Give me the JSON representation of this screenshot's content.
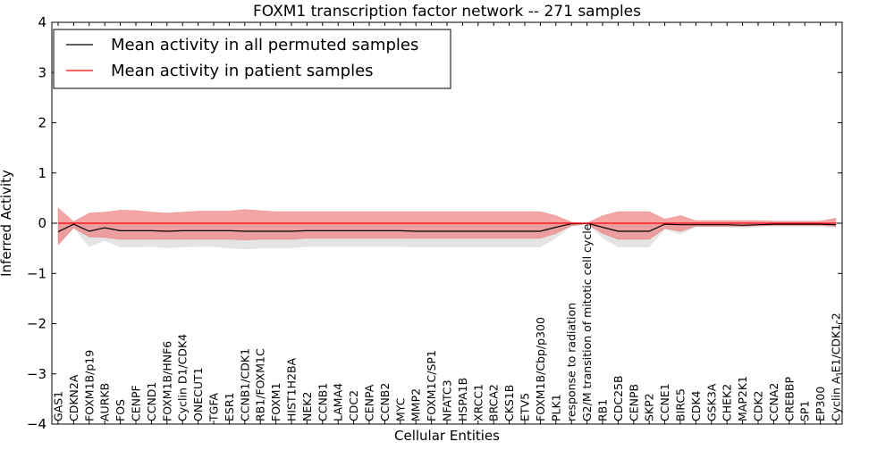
{
  "chart_data": {
    "type": "line",
    "title": "FOXM1 transcription factor network -- 271 samples",
    "xlabel": "Cellular Entities",
    "ylabel": "Inferred Activity",
    "ylim": [
      -4,
      4
    ],
    "yticks": [
      -4,
      -3,
      -2,
      -1,
      0,
      1,
      2,
      3,
      4
    ],
    "ytick_labels": [
      "−4",
      "−3",
      "−2",
      "−1",
      "0",
      "1",
      "2",
      "3",
      "4"
    ],
    "categories": [
      "GAS1",
      "CDKN2A",
      "FOXM1B/p19",
      "AURKB",
      "FOS",
      "CENPF",
      "CCND1",
      "FOXM1B/HNF6",
      "Cyclin D1/CDK4",
      "ONECUT1",
      "TGFA",
      "ESR1",
      "CCNB1/CDK1",
      "RB1/FOXM1C",
      "FOXM1",
      "HIST1H2BA",
      "NEK2",
      "CCNB1",
      "LAMA4",
      "CDC2",
      "CENPA",
      "CCNB2",
      "MYC",
      "MMP2",
      "FOXM1C/SP1",
      "NFATC3",
      "HSPA1B",
      "XRCC1",
      "BRCA2",
      "CKS1B",
      "ETV5",
      "FOXM1B/Cbp/p300",
      "PLK1",
      "response to radiation",
      "G2/M transition of mitotic cell cycle",
      "RB1",
      "CDC25B",
      "CENPB",
      "SKP2",
      "CCNE1",
      "BIRC5",
      "CDK4",
      "GSK3A",
      "CHEK2",
      "MAP2K1",
      "CDK2",
      "CCNA2",
      "CREBBP",
      "SP1",
      "EP300",
      "Cyclin A-E1/CDK1-2"
    ],
    "legend_position": "top-left",
    "series": [
      {
        "name": "Mean activity in all permuted samples",
        "color": "#000000",
        "values": [
          -0.17,
          -0.02,
          -0.16,
          -0.09,
          -0.15,
          -0.15,
          -0.15,
          -0.16,
          -0.15,
          -0.15,
          -0.15,
          -0.15,
          -0.16,
          -0.16,
          -0.16,
          -0.16,
          -0.15,
          -0.15,
          -0.15,
          -0.15,
          -0.15,
          -0.15,
          -0.15,
          -0.16,
          -0.16,
          -0.16,
          -0.16,
          -0.16,
          -0.16,
          -0.16,
          -0.16,
          -0.16,
          -0.08,
          -0.01,
          0.0,
          -0.08,
          -0.16,
          -0.16,
          -0.16,
          -0.02,
          -0.03,
          -0.03,
          -0.03,
          -0.03,
          -0.04,
          -0.03,
          -0.02,
          -0.02,
          -0.02,
          -0.02,
          -0.03
        ],
        "band_upper": [
          0.0,
          0.03,
          0.0,
          0.0,
          0.0,
          0.0,
          0.0,
          0.0,
          0.0,
          0.0,
          0.0,
          0.0,
          0.0,
          0.0,
          0.0,
          0.0,
          0.0,
          0.0,
          0.0,
          0.0,
          0.0,
          0.0,
          0.0,
          0.0,
          0.0,
          0.0,
          0.0,
          0.0,
          0.0,
          0.0,
          0.0,
          0.0,
          0.0,
          0.0,
          0.0,
          0.0,
          0.0,
          0.0,
          0.0,
          0.0,
          0.0,
          0.0,
          0.0,
          0.0,
          0.0,
          0.0,
          0.0,
          0.0,
          0.0,
          0.0,
          0.0
        ],
        "band_lower": [
          -0.45,
          -0.1,
          -0.47,
          -0.35,
          -0.48,
          -0.48,
          -0.47,
          -0.5,
          -0.48,
          -0.47,
          -0.47,
          -0.5,
          -0.52,
          -0.5,
          -0.5,
          -0.5,
          -0.47,
          -0.47,
          -0.47,
          -0.47,
          -0.47,
          -0.47,
          -0.47,
          -0.48,
          -0.48,
          -0.48,
          -0.48,
          -0.48,
          -0.48,
          -0.48,
          -0.48,
          -0.48,
          -0.3,
          -0.06,
          -0.01,
          -0.3,
          -0.48,
          -0.48,
          -0.48,
          -0.13,
          -0.22,
          -0.08,
          -0.08,
          -0.08,
          -0.1,
          -0.08,
          -0.07,
          -0.07,
          -0.07,
          -0.07,
          -0.1
        ]
      },
      {
        "name": "Mean activity in patient samples",
        "color": "#ff0000",
        "values": [
          0.0,
          0.0,
          0.0,
          0.0,
          0.0,
          0.0,
          0.0,
          0.0,
          0.0,
          0.0,
          0.0,
          0.0,
          0.0,
          0.0,
          0.0,
          0.0,
          0.0,
          0.0,
          0.0,
          0.0,
          0.0,
          0.0,
          0.0,
          0.0,
          0.0,
          0.0,
          0.0,
          0.0,
          0.0,
          0.0,
          0.0,
          0.0,
          0.0,
          0.0,
          0.0,
          0.0,
          0.0,
          0.0,
          0.0,
          0.0,
          0.0,
          0.0,
          0.0,
          0.0,
          0.0,
          0.0,
          0.0,
          0.0,
          0.0,
          0.0,
          0.0
        ],
        "band_upper": [
          0.3,
          0.03,
          0.2,
          0.22,
          0.26,
          0.25,
          0.22,
          0.2,
          0.22,
          0.24,
          0.24,
          0.24,
          0.27,
          0.25,
          0.23,
          0.23,
          0.23,
          0.23,
          0.23,
          0.23,
          0.23,
          0.23,
          0.23,
          0.23,
          0.23,
          0.23,
          0.23,
          0.23,
          0.23,
          0.23,
          0.23,
          0.23,
          0.15,
          0.02,
          0.0,
          0.15,
          0.23,
          0.23,
          0.23,
          0.08,
          0.15,
          0.05,
          0.05,
          0.05,
          0.05,
          0.05,
          0.04,
          0.04,
          0.04,
          0.04,
          0.1
        ],
        "band_lower": [
          -0.42,
          -0.09,
          -0.27,
          -0.28,
          -0.32,
          -0.32,
          -0.32,
          -0.32,
          -0.32,
          -0.32,
          -0.32,
          -0.32,
          -0.33,
          -0.32,
          -0.32,
          -0.32,
          -0.3,
          -0.3,
          -0.3,
          -0.3,
          -0.3,
          -0.3,
          -0.3,
          -0.3,
          -0.3,
          -0.3,
          -0.3,
          -0.3,
          -0.3,
          -0.3,
          -0.3,
          -0.3,
          -0.2,
          -0.05,
          -0.01,
          -0.2,
          -0.32,
          -0.32,
          -0.32,
          -0.1,
          -0.16,
          -0.06,
          -0.06,
          -0.06,
          -0.06,
          -0.05,
          -0.04,
          -0.04,
          -0.04,
          -0.04,
          -0.06
        ]
      }
    ],
    "band_colors": {
      "permuted": "#dddddd",
      "patient": "#f08080"
    }
  }
}
